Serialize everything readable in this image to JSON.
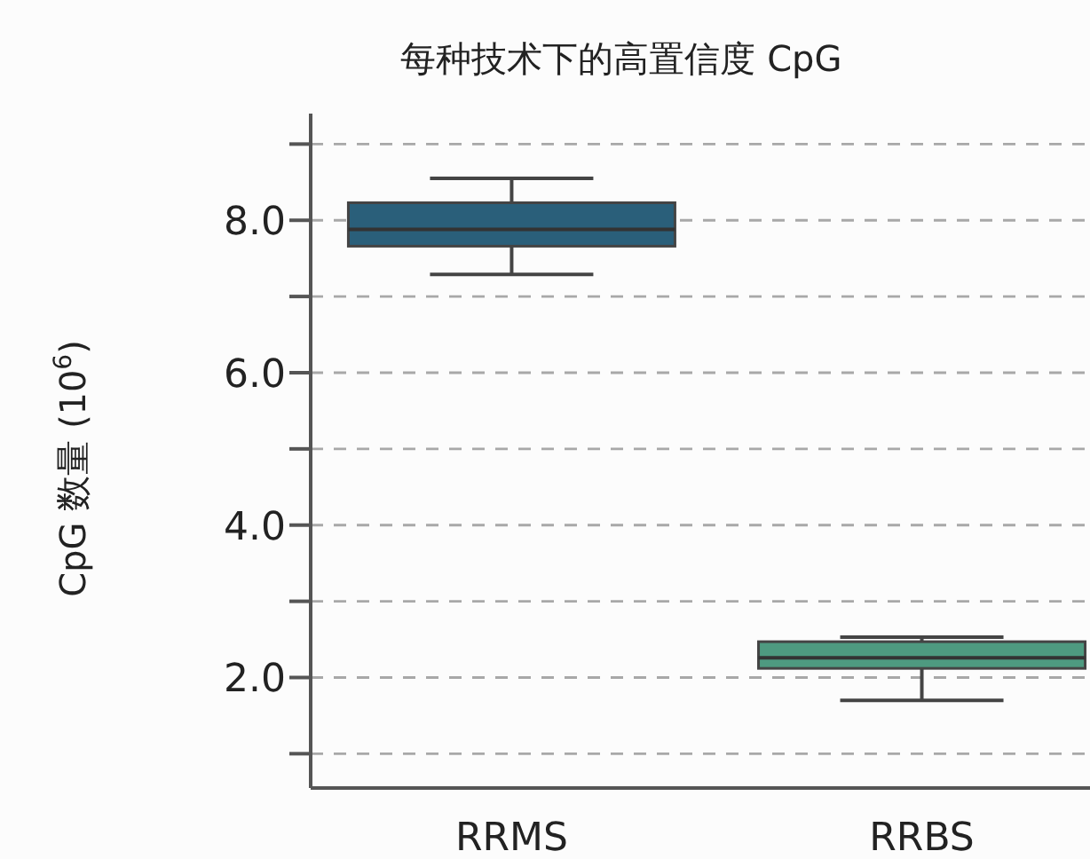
{
  "chart_data": {
    "type": "box",
    "title": "每种技术下的高置信度 CpG",
    "ylabel": "CpG 数量 (10$^{6}$)",
    "categories": [
      "RRMS",
      "RRBS"
    ],
    "boxes": [
      {
        "low": 7.29,
        "q1": 7.66,
        "median": 7.88,
        "q3": 8.23,
        "high": 8.55
      },
      {
        "low": 1.7,
        "q1": 2.12,
        "median": 2.26,
        "q3": 2.47,
        "high": 2.53
      }
    ],
    "colors": [
      "#2a5f7a",
      "#4e9a80"
    ],
    "ylim": [
      0.55,
      9.4
    ],
    "yticks": [
      {
        "value": 1,
        "label": null
      },
      {
        "value": 2,
        "label": "2.0"
      },
      {
        "value": 3,
        "label": null
      },
      {
        "value": 4,
        "label": "4.0"
      },
      {
        "value": 5,
        "label": null
      },
      {
        "value": 6,
        "label": "6.0"
      },
      {
        "value": 7,
        "label": null
      },
      {
        "value": 8,
        "label": "8.0"
      },
      {
        "value": 9,
        "label": null
      }
    ],
    "grid": "y"
  }
}
